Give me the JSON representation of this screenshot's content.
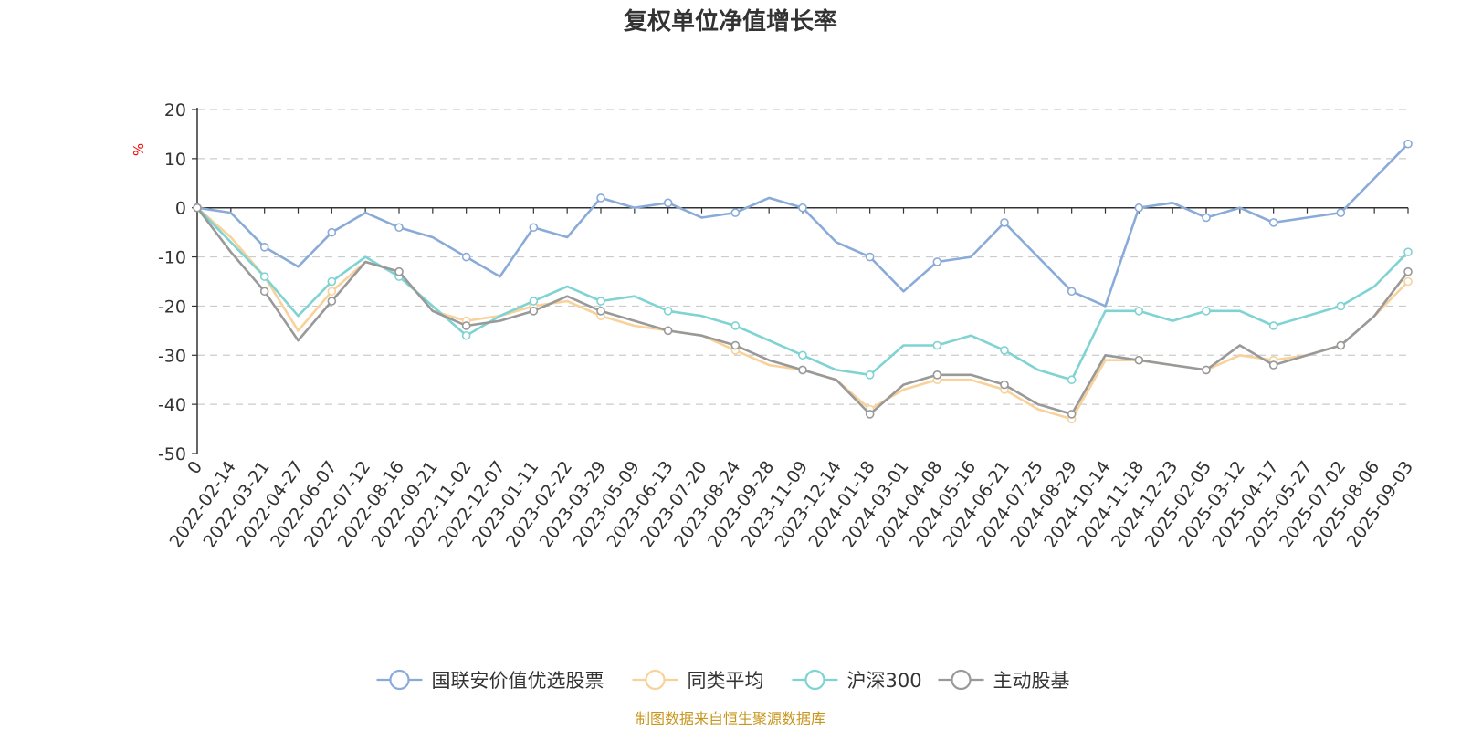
{
  "chart_data": {
    "type": "line",
    "title": "复权单位净值增长率",
    "ylabel": "%",
    "ylim": [
      -50,
      20
    ],
    "yticks": [
      "20",
      "10",
      "0",
      "-10",
      "-20",
      "-30",
      "-40",
      "-50"
    ],
    "xticks": [
      "0",
      "2022-02-14",
      "2022-03-21",
      "2022-04-27",
      "2022-06-07",
      "2022-07-12",
      "2022-08-16",
      "2022-09-21",
      "2022-11-02",
      "2022-12-07",
      "2023-01-11",
      "2023-02-22",
      "2023-03-29",
      "2023-05-09",
      "2023-06-13",
      "2023-07-20",
      "2023-08-24",
      "2023-09-28",
      "2023-11-09",
      "2023-12-14",
      "2024-01-18",
      "2024-03-01",
      "2024-04-08",
      "2024-05-16",
      "2024-06-21",
      "2024-07-25",
      "2024-08-29",
      "2024-10-14",
      "2024-11-18",
      "2024-12-23",
      "2025-02-05",
      "2025-03-12",
      "2025-04-17",
      "2025-05-27",
      "2025-07-02",
      "2025-08-06",
      "2025-09-03"
    ],
    "grid": "dashed horizontal",
    "legend_position": "bottom",
    "source_note": "制图数据来自恒生聚源数据库",
    "series": [
      {
        "name": "国联安价值优选股票",
        "color": "#8aabd8",
        "values": [
          0,
          -1,
          -8,
          -12,
          -5,
          -1,
          -4,
          -6,
          -10,
          -14,
          -4,
          -6,
          2,
          0,
          1,
          -2,
          -1,
          2,
          0,
          -7,
          -10,
          -17,
          -11,
          -10,
          -3,
          -10,
          -17,
          -20,
          0,
          1,
          -2,
          0,
          -3,
          -2,
          -1,
          6,
          13
        ]
      },
      {
        "name": "同类平均",
        "color": "#f8d29a",
        "values": [
          0,
          -6,
          -14,
          -25,
          -17,
          -11,
          -13,
          -21,
          -23,
          -22,
          -20,
          -19,
          -22,
          -24,
          -25,
          -26,
          -29,
          -32,
          -33,
          -35,
          -41,
          -37,
          -35,
          -35,
          -37,
          -41,
          -43,
          -31,
          -31,
          -32,
          -33,
          -30,
          -31,
          -30,
          -28,
          -22,
          -15
        ]
      },
      {
        "name": "沪深300",
        "color": "#7fd3d3",
        "values": [
          0,
          -7,
          -14,
          -22,
          -15,
          -10,
          -14,
          -20,
          -26,
          -22,
          -19,
          -16,
          -19,
          -18,
          -21,
          -22,
          -24,
          -27,
          -30,
          -33,
          -34,
          -28,
          -28,
          -26,
          -29,
          -33,
          -35,
          -21,
          -21,
          -23,
          -21,
          -21,
          -24,
          -22,
          -20,
          -16,
          -9
        ]
      },
      {
        "name": "主动股基",
        "color": "#999999",
        "values": [
          0,
          -9,
          -17,
          -27,
          -19,
          -11,
          -13,
          -21,
          -24,
          -23,
          -21,
          -18,
          -21,
          -23,
          -25,
          -26,
          -28,
          -31,
          -33,
          -35,
          -42,
          -36,
          -34,
          -34,
          -36,
          -40,
          -42,
          -30,
          -31,
          -32,
          -33,
          -28,
          -32,
          -30,
          -28,
          -22,
          -13
        ]
      }
    ]
  }
}
